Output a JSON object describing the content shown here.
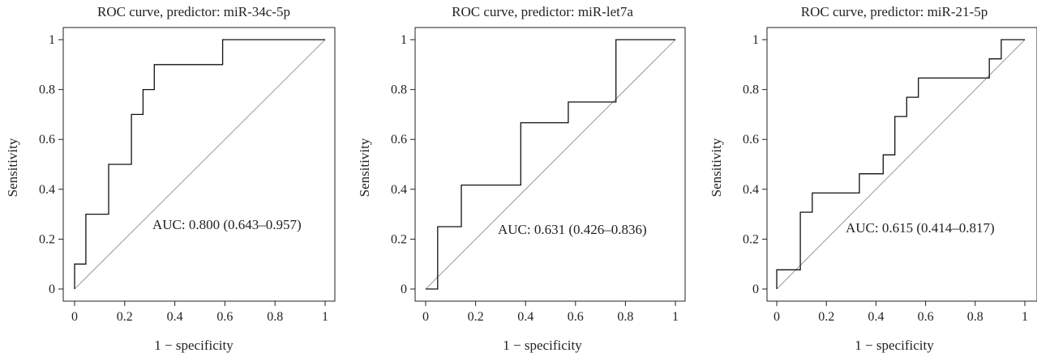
{
  "figure": {
    "panels": [
      {
        "title": "ROC curve, predictor: miR-34c-5p",
        "xlabel": "1 − specificity",
        "ylabel": "Sensitivity",
        "annotation": "AUC: 0.800 (0.643–0.957)"
      },
      {
        "title": "ROC curve, predictor: miR-let7a",
        "xlabel": "1 − specificity",
        "ylabel": "Sensitivity",
        "annotation": "AUC: 0.631 (0.426–0.836)"
      },
      {
        "title": "ROC curve, predictor: miR-21-5p",
        "xlabel": "1 − specificity",
        "ylabel": "Sensitivity",
        "annotation": "AUC: 0.615 (0.414–0.817)"
      }
    ]
  },
  "chart_data": [
    {
      "type": "line",
      "title": "ROC curve, predictor: miR-34c-5p",
      "xlabel": "1 − specificity",
      "ylabel": "Sensitivity",
      "xlim": [
        0,
        1
      ],
      "ylim": [
        0,
        1
      ],
      "xticks": [
        0,
        0.2,
        0.4,
        0.6,
        0.8,
        1
      ],
      "xtick_labels": [
        "0",
        "0.2",
        "0.4",
        "0.6",
        "0.8",
        "1"
      ],
      "yticks": [
        0,
        0.2,
        0.4,
        0.6,
        0.8,
        1
      ],
      "ytick_labels": [
        "0",
        "0.2",
        "0.4",
        "0.6",
        "0.8",
        "1"
      ],
      "grid": false,
      "series": [
        {
          "x": [
            0,
            0,
            0.045,
            0.045,
            0.136,
            0.136,
            0.227,
            0.227,
            0.273,
            0.273,
            0.318,
            0.318,
            0.591,
            0.591,
            1
          ],
          "y": [
            0,
            0.1,
            0.1,
            0.3,
            0.3,
            0.5,
            0.5,
            0.7,
            0.7,
            0.8,
            0.8,
            0.9,
            0.9,
            1,
            1
          ]
        }
      ],
      "reference_line": {
        "x": [
          0,
          1
        ],
        "y": [
          0,
          1
        ]
      },
      "annotation": "AUC: 0.800 (0.643–0.957)"
    },
    {
      "type": "line",
      "title": "ROC curve, predictor: miR-let7a",
      "xlabel": "1 − specificity",
      "ylabel": "Sensitivity",
      "xlim": [
        0,
        1
      ],
      "ylim": [
        0,
        1
      ],
      "xticks": [
        0,
        0.2,
        0.4,
        0.6,
        0.8,
        1
      ],
      "xtick_labels": [
        "0",
        "0.2",
        "0.4",
        "0.6",
        "0.8",
        "1"
      ],
      "yticks": [
        0,
        0.2,
        0.4,
        0.6,
        0.8,
        1
      ],
      "ytick_labels": [
        "0",
        "0.2",
        "0.4",
        "0.6",
        "0.8",
        "1"
      ],
      "grid": false,
      "series": [
        {
          "x": [
            0,
            0.048,
            0.048,
            0.143,
            0.143,
            0.381,
            0.381,
            0.571,
            0.571,
            0.762,
            0.762,
            1
          ],
          "y": [
            0,
            0,
            0.25,
            0.25,
            0.417,
            0.417,
            0.667,
            0.667,
            0.75,
            0.75,
            1,
            1
          ]
        }
      ],
      "reference_line": {
        "x": [
          0,
          1
        ],
        "y": [
          0,
          1
        ]
      },
      "annotation": "AUC: 0.631 (0.426–0.836)"
    },
    {
      "type": "line",
      "title": "ROC curve, predictor: miR-21-5p",
      "xlabel": "1 − specificity",
      "ylabel": "Sensitivity",
      "xlim": [
        0,
        1
      ],
      "ylim": [
        0,
        1
      ],
      "xticks": [
        0,
        0.2,
        0.4,
        0.6,
        0.8,
        1
      ],
      "xtick_labels": [
        "0",
        "0.2",
        "0.4",
        "0.6",
        "0.8",
        "1"
      ],
      "yticks": [
        0,
        0.2,
        0.4,
        0.6,
        0.8,
        1
      ],
      "ytick_labels": [
        "0",
        "0.2",
        "0.4",
        "0.6",
        "0.8",
        "1"
      ],
      "grid": false,
      "series": [
        {
          "x": [
            0,
            0,
            0.095,
            0.095,
            0.143,
            0.143,
            0.333,
            0.333,
            0.429,
            0.429,
            0.476,
            0.476,
            0.524,
            0.524,
            0.571,
            0.571,
            0.857,
            0.857,
            0.905,
            0.905,
            1
          ],
          "y": [
            0,
            0.077,
            0.077,
            0.308,
            0.308,
            0.385,
            0.385,
            0.462,
            0.462,
            0.538,
            0.538,
            0.692,
            0.692,
            0.769,
            0.769,
            0.846,
            0.846,
            0.923,
            0.923,
            1,
            1
          ]
        }
      ],
      "reference_line": {
        "x": [
          0,
          1
        ],
        "y": [
          0,
          1
        ]
      },
      "annotation": "AUC: 0.615 (0.414–0.817)"
    }
  ]
}
